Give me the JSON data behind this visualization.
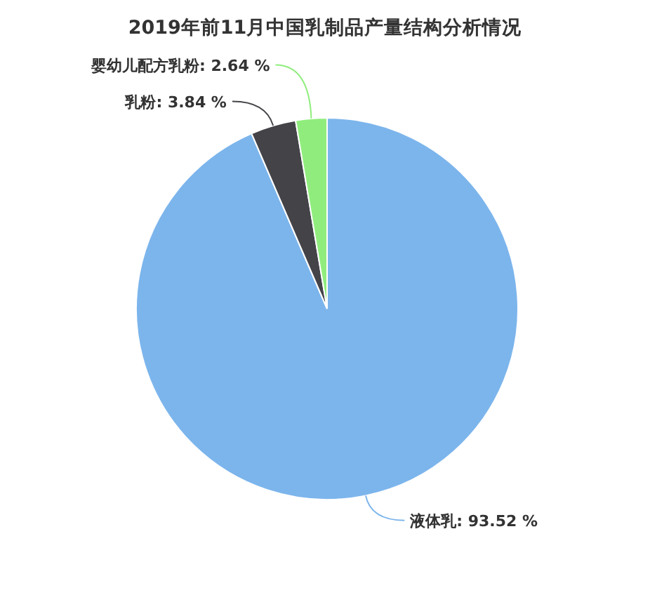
{
  "chart_data": {
    "type": "pie",
    "title": "2019年前11月中国乳制品产量结构分析情况",
    "categories": [
      "液体乳",
      "乳粉",
      "婴幼儿配方乳粉"
    ],
    "values": [
      93.52,
      3.84,
      2.64
    ],
    "value_labels": [
      "93.52 %",
      "3.84 %",
      "2.64 %"
    ],
    "colors": [
      "#7cb5ec",
      "#434348",
      "#90ed7d"
    ]
  }
}
